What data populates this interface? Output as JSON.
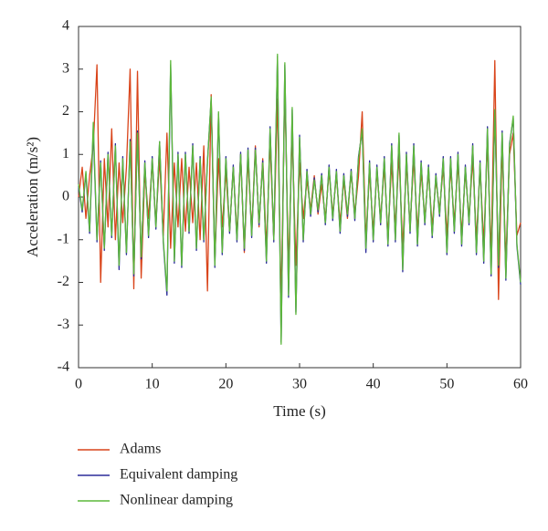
{
  "chart_data": {
    "type": "line",
    "xlabel": "Time (s)",
    "ylabel": "Acceleration (m/s²)",
    "x": [
      0,
      0.5,
      1,
      1.5,
      2,
      2.5,
      3,
      3.5,
      4,
      4.5,
      5,
      5.5,
      6,
      6.5,
      7,
      7.5,
      8,
      8.5,
      9,
      9.5,
      10,
      10.5,
      11,
      11.5,
      12,
      12.5,
      13,
      13.5,
      14,
      14.5,
      15,
      15.5,
      16,
      16.5,
      17,
      17.5,
      18,
      18.5,
      19,
      19.5,
      20,
      20.5,
      21,
      21.5,
      22,
      22.5,
      23,
      23.5,
      24,
      24.5,
      25,
      25.5,
      26,
      26.5,
      27,
      27.5,
      28,
      28.5,
      29,
      29.5,
      30,
      30.5,
      31,
      31.5,
      32,
      32.5,
      33,
      33.5,
      34,
      34.5,
      35,
      35.5,
      36,
      36.5,
      37,
      37.5,
      38,
      38.5,
      39,
      39.5,
      40,
      40.5,
      41,
      41.5,
      42,
      42.5,
      43,
      43.5,
      44,
      44.5,
      45,
      45.5,
      46,
      46.5,
      47,
      47.5,
      48,
      48.5,
      49,
      49.5,
      50,
      50.5,
      51,
      51.5,
      52,
      52.5,
      53,
      53.5,
      54,
      54.5,
      55,
      55.5,
      56,
      56.5,
      57,
      57.5,
      58,
      58.5,
      59,
      59.5,
      60
    ],
    "series": [
      {
        "name": "Adams",
        "color": "#d9441a",
        "values": [
          0.0,
          0.7,
          -0.5,
          0.5,
          1.2,
          3.1,
          -2.0,
          0.9,
          -0.7,
          1.6,
          -1.0,
          0.8,
          -0.6,
          0.7,
          3.0,
          -2.15,
          2.95,
          -1.9,
          0.6,
          -0.5,
          0.8,
          -0.6,
          0.9,
          -0.9,
          1.5,
          -1.2,
          0.8,
          -0.7,
          0.9,
          -0.8,
          0.7,
          -0.6,
          0.8,
          -1.0,
          1.2,
          -2.2,
          2.4,
          -1.5,
          0.9,
          -0.7,
          0.6,
          -0.8,
          0.7,
          -0.9,
          1.0,
          -1.3,
          0.9,
          -0.8,
          1.2,
          -0.7,
          0.9,
          -1.2,
          1.3,
          -1.0,
          2.3,
          -2.5,
          2.6,
          -1.7,
          1.5,
          -1.6,
          0.8,
          -0.5,
          0.4,
          -0.3,
          0.5,
          -0.4,
          0.3,
          -0.5,
          0.6,
          -0.4,
          0.5,
          -0.6,
          0.4,
          -0.5,
          0.6,
          -0.4,
          0.5,
          2.0,
          -1.0,
          0.6,
          -0.8,
          0.6,
          -0.5,
          0.7,
          -0.9,
          0.8,
          -0.7,
          1.0,
          -1.2,
          0.8,
          -0.7,
          0.9,
          -0.8,
          0.6,
          -0.5,
          0.6,
          -0.7,
          0.4,
          -0.3,
          0.7,
          -0.9,
          0.7,
          -0.6,
          0.8,
          -0.9,
          0.6,
          -0.5,
          0.9,
          -1.0,
          0.7,
          -1.1,
          1.3,
          -1.4,
          3.2,
          -2.4,
          1.2,
          -1.5,
          1.0,
          1.5,
          -0.9,
          -0.6
        ]
      },
      {
        "name": "Equivalent damping",
        "color": "#2b2c9a",
        "values": [
          0.25,
          -0.35,
          0.55,
          -0.85,
          1.6,
          -1.05,
          0.85,
          -1.25,
          1.05,
          -0.95,
          1.25,
          -1.7,
          0.95,
          -1.35,
          1.35,
          -1.85,
          1.55,
          -1.45,
          0.85,
          -0.95,
          0.95,
          -0.75,
          1.3,
          -1.05,
          -2.3,
          3.1,
          -1.55,
          1.05,
          -1.65,
          1.05,
          -0.85,
          1.25,
          -1.25,
          0.95,
          -1.05,
          0.85,
          2.3,
          -1.65,
          1.95,
          -1.35,
          0.95,
          -0.85,
          0.75,
          -1.05,
          1.05,
          -1.25,
          1.15,
          -0.95,
          1.15,
          -0.65,
          0.85,
          -1.55,
          1.65,
          -1.05,
          3.3,
          -3.4,
          3.1,
          -2.35,
          2.05,
          -2.7,
          1.45,
          -1.05,
          0.65,
          -0.45,
          0.45,
          -0.35,
          0.55,
          -0.65,
          0.75,
          -0.55,
          0.65,
          -0.85,
          0.55,
          -0.45,
          0.65,
          -0.55,
          0.95,
          1.55,
          -1.3,
          0.85,
          -1.05,
          0.75,
          -0.65,
          0.95,
          -1.15,
          1.25,
          -1.05,
          1.45,
          -1.75,
          1.05,
          -0.85,
          1.25,
          -1.15,
          0.85,
          -0.65,
          0.75,
          -0.95,
          0.55,
          -0.45,
          0.95,
          -1.35,
          0.95,
          -0.85,
          1.05,
          -1.15,
          0.75,
          -0.65,
          1.25,
          -1.35,
          0.85,
          -1.55,
          1.65,
          -1.85,
          2.0,
          -1.65,
          1.55,
          -1.95,
          1.25,
          1.85,
          -1.15,
          -2.05
        ]
      },
      {
        "name": "Nonlinear damping",
        "color": "#5cb83a",
        "values": [
          0.3,
          -0.3,
          0.6,
          -0.8,
          1.75,
          -1.0,
          0.8,
          -1.2,
          1.0,
          -0.9,
          1.2,
          -1.6,
          0.9,
          -1.3,
          1.3,
          -1.8,
          1.5,
          -1.4,
          0.8,
          -0.9,
          0.9,
          -0.7,
          1.3,
          -1.0,
          -2.2,
          3.2,
          -1.5,
          1.0,
          -1.6,
          1.0,
          -0.8,
          1.2,
          -1.2,
          0.9,
          -1.0,
          0.8,
          2.35,
          -1.6,
          2.0,
          -1.3,
          0.9,
          -0.8,
          0.7,
          -1.0,
          1.0,
          -1.2,
          1.1,
          -0.9,
          1.1,
          -0.6,
          0.8,
          -1.5,
          1.6,
          -1.0,
          3.35,
          -3.45,
          3.15,
          -2.3,
          2.1,
          -2.75,
          1.4,
          -1.0,
          0.6,
          -0.4,
          0.4,
          -0.3,
          0.5,
          -0.6,
          0.7,
          -0.5,
          0.6,
          -0.8,
          0.5,
          -0.4,
          0.6,
          -0.5,
          0.9,
          1.6,
          -1.2,
          0.8,
          -1.0,
          0.7,
          -0.6,
          0.9,
          -1.1,
          1.2,
          -1.0,
          1.5,
          -1.7,
          1.0,
          -0.8,
          1.2,
          -1.1,
          0.8,
          -0.6,
          0.7,
          -0.9,
          0.5,
          -0.4,
          0.9,
          -1.3,
          0.9,
          -0.8,
          1.0,
          -1.1,
          0.7,
          -0.6,
          1.2,
          -1.3,
          0.8,
          -1.5,
          1.6,
          -1.8,
          2.05,
          -1.6,
          1.5,
          -1.9,
          1.2,
          1.9,
          -1.1,
          -2.0
        ]
      }
    ],
    "xlim": [
      0,
      60
    ],
    "xticks": [
      0,
      10,
      20,
      30,
      40,
      50,
      60
    ],
    "ylim": [
      -4,
      4
    ],
    "yticks": [
      -4,
      -3,
      -2,
      -1,
      0,
      1,
      2,
      3,
      4
    ],
    "grid": false,
    "legend": "bottom"
  }
}
